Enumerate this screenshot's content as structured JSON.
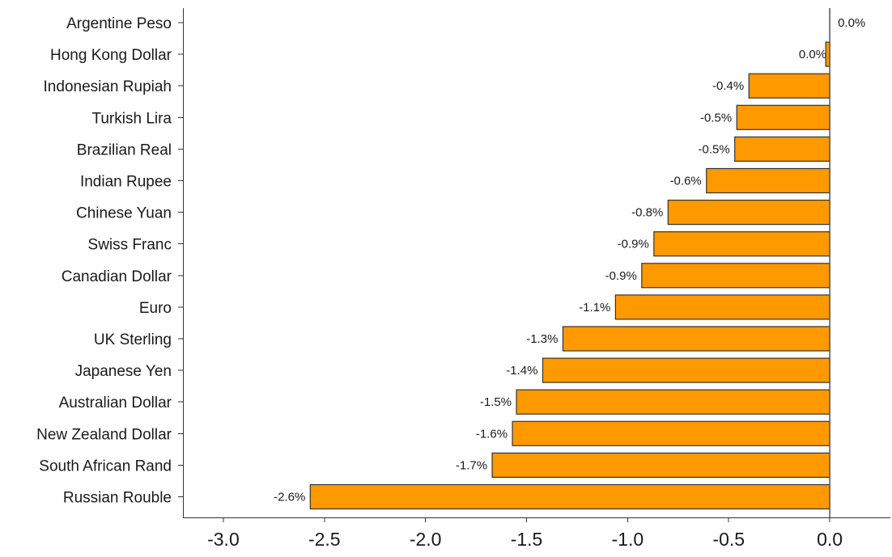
{
  "colors": {
    "bar_fill": "#FF9900",
    "bar_stroke": "#333333",
    "axis": "#333333",
    "text": "#1a1a1a",
    "background": "#FFFFFF"
  },
  "chart_data": {
    "type": "bar",
    "orientation": "horizontal",
    "title": "",
    "xlabel": "",
    "ylabel": "",
    "categories": [
      "Argentine Peso",
      "Hong Kong Dollar",
      "Indonesian Rupiah",
      "Turkish Lira",
      "Brazilian Real",
      "Indian Rupee",
      "Chinese Yuan",
      "Swiss Franc",
      "Canadian Dollar",
      "Euro",
      "UK Sterling",
      "Japanese Yen",
      "Australian Dollar",
      "New Zealand Dollar",
      "South African Rand",
      "Russian Rouble"
    ],
    "values": [
      0.0,
      -0.02,
      -0.4,
      -0.46,
      -0.47,
      -0.61,
      -0.8,
      -0.87,
      -0.93,
      -1.06,
      -1.32,
      -1.42,
      -1.55,
      -1.57,
      -1.67,
      -2.57
    ],
    "value_labels": [
      "0.0%",
      "0.0%",
      "-0.4%",
      "-0.5%",
      "-0.5%",
      "-0.6%",
      "-0.8%",
      "-0.9%",
      "-0.9%",
      "-1.1%",
      "-1.3%",
      "-1.4%",
      "-1.5%",
      "-1.6%",
      "-1.7%",
      "-2.6%"
    ],
    "xlim": [
      -3.2,
      0.3
    ],
    "xticks": [
      -3.0,
      -2.5,
      -2.0,
      -1.5,
      -1.0,
      -0.5,
      0.0
    ],
    "xtick_labels": [
      "-3.0",
      "-2.5",
      "-2.0",
      "-1.5",
      "-1.0",
      "-0.5",
      "0.0"
    ],
    "grid": false,
    "legend": "none"
  }
}
